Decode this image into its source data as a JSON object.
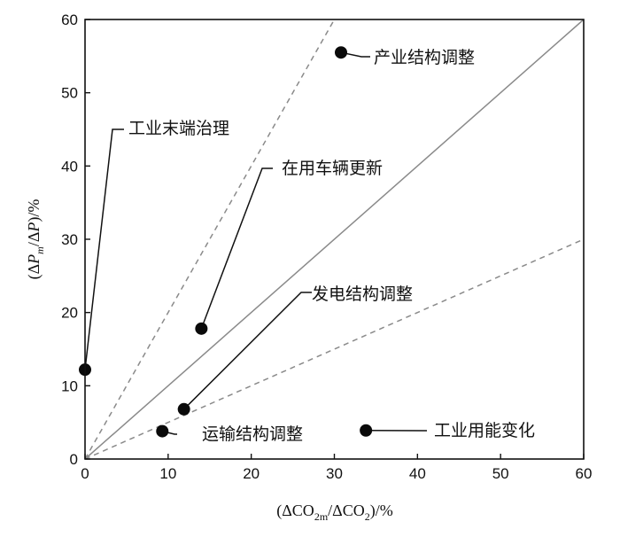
{
  "chart_data": {
    "type": "scatter",
    "xlabel": "(ΔCO2m/ΔCO2)/%",
    "ylabel": "(ΔPm/ΔP)/%",
    "xlabel_parts": {
      "pre": "(ΔCO",
      "sub1": "2m",
      "mid": "/ΔCO",
      "sub2": "2",
      "post": ")/%"
    },
    "ylabel_parts": {
      "pre": "(Δ",
      "p1": "P",
      "sub": "m",
      "mid": "/Δ",
      "p2": "P",
      "post": ")/%"
    },
    "xlim": [
      0,
      60
    ],
    "ylim": [
      0,
      60
    ],
    "xticks": [
      0,
      10,
      20,
      30,
      40,
      50,
      60
    ],
    "yticks": [
      0,
      10,
      20,
      30,
      40,
      50,
      60
    ],
    "grid": false,
    "reference_lines": [
      {
        "slope": 1,
        "style": "solid",
        "color": "#8a8a8a"
      },
      {
        "slope": 2,
        "style": "dashed",
        "color": "#8a8a8a"
      },
      {
        "slope": 0.5,
        "style": "dashed",
        "color": "#8a8a8a"
      }
    ],
    "points": [
      {
        "label": "产业结构调整",
        "x": 30.8,
        "y": 55.5
      },
      {
        "label": "工业末端治理",
        "x": 0.0,
        "y": 12.2
      },
      {
        "label": "在用车辆更新",
        "x": 14.0,
        "y": 17.8
      },
      {
        "label": "发电结构调整",
        "x": 11.9,
        "y": 6.8
      },
      {
        "label": "运输结构调整",
        "x": 9.3,
        "y": 3.8
      },
      {
        "label": "工业用能变化",
        "x": 33.8,
        "y": 3.9
      }
    ]
  }
}
